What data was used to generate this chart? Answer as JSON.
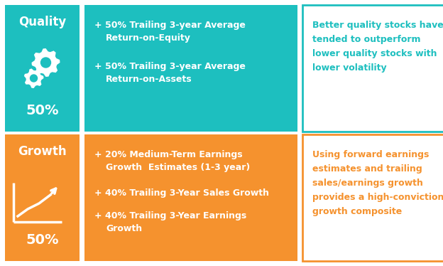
{
  "teal_color": "#1DBFBF",
  "orange_color": "#F5922E",
  "white_color": "#FFFFFF",
  "bg_color": "#FFFFFF",
  "quality_label": "Quality",
  "quality_pct": "50%",
  "quality_bullet1_line1": "+ 50% Trailing 3-year Average",
  "quality_bullet1_line2": "Return-on-Equity",
  "quality_bullet2_line1": "+ 50% Trailing 3-year Average",
  "quality_bullet2_line2": "Return-on-Assets",
  "quality_desc": "Better quality stocks have\ntended to outperform\nlower quality stocks with\nlower volatility",
  "growth_label": "Growth",
  "growth_pct": "50%",
  "growth_bullet1_line1": "+ 20% Medium-Term Earnings",
  "growth_bullet1_line2": "Growth  Estimates (1-3 year)",
  "growth_bullet2": "+ 40% Trailing 3-Year Sales Growth",
  "growth_bullet3_line1": "+ 40% Trailing 3-Year Earnings",
  "growth_bullet3_line2": "Growth",
  "growth_desc": "Using forward earnings\nestimates and trailing\nsales/earnings growth\nprovides a high-conviction\ngrowth composite",
  "figsize": [
    6.24,
    3.74
  ],
  "dpi": 100
}
